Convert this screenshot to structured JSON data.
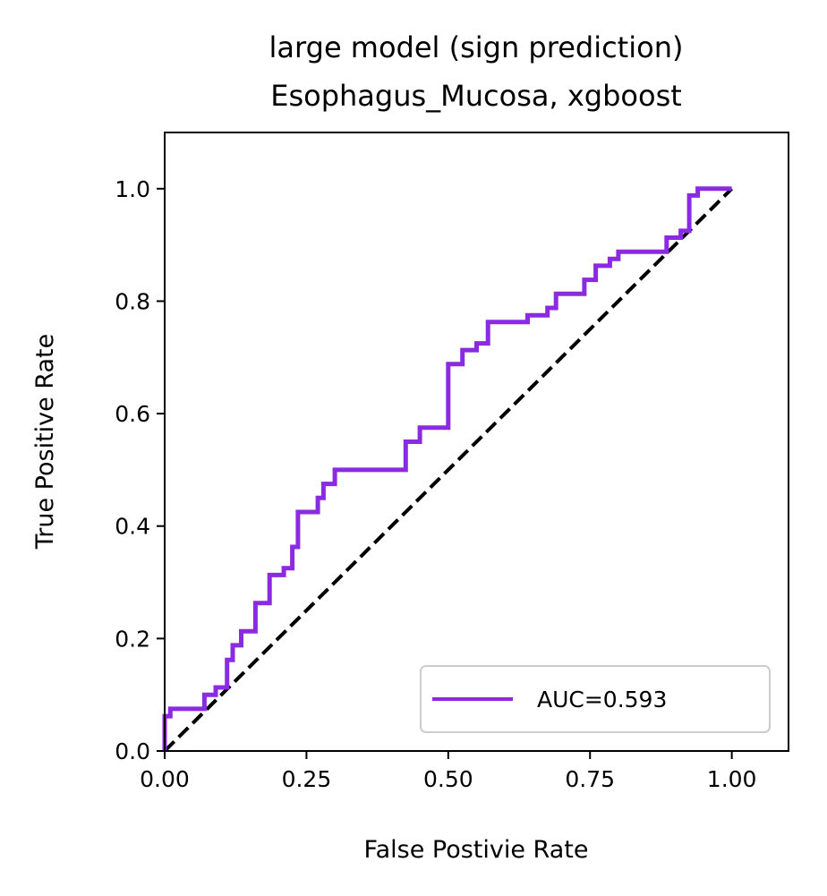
{
  "chart_data": {
    "type": "line",
    "title": "large model (sign prediction)",
    "subtitle": "Esophagus_Mucosa, xgboost",
    "xlabel": "False Postivie Rate",
    "ylabel": "True Positive Rate",
    "xlim": [
      0.0,
      1.1
    ],
    "ylim": [
      0.0,
      1.1
    ],
    "xticks": [
      0.0,
      0.25,
      0.5,
      0.75,
      1.0
    ],
    "xtick_labels": [
      "0.00",
      "0.25",
      "0.50",
      "0.75",
      "1.00"
    ],
    "yticks": [
      0.0,
      0.2,
      0.4,
      0.6,
      0.8,
      1.0
    ],
    "ytick_labels": [
      "0.0",
      "0.2",
      "0.4",
      "0.6",
      "0.8",
      "1.0"
    ],
    "grid": false,
    "legend_position": "lower-right",
    "colors": {
      "roc": "#8a2be2",
      "diagonal": "#000000"
    },
    "series": [
      {
        "name": "AUC=0.593",
        "style": "solid",
        "color": "#8a2be2",
        "x": [
          0.0,
          0.0,
          0.01,
          0.01,
          0.07,
          0.07,
          0.09,
          0.09,
          0.11,
          0.11,
          0.12,
          0.12,
          0.135,
          0.135,
          0.16,
          0.16,
          0.185,
          0.185,
          0.21,
          0.21,
          0.225,
          0.225,
          0.235,
          0.235,
          0.27,
          0.27,
          0.28,
          0.28,
          0.3,
          0.3,
          0.425,
          0.425,
          0.45,
          0.45,
          0.5,
          0.5,
          0.525,
          0.525,
          0.55,
          0.55,
          0.57,
          0.57,
          0.64,
          0.64,
          0.675,
          0.675,
          0.69,
          0.69,
          0.74,
          0.74,
          0.76,
          0.76,
          0.785,
          0.785,
          0.8,
          0.8,
          0.885,
          0.885,
          0.91,
          0.91,
          0.925,
          0.925,
          0.94,
          0.94,
          1.0
        ],
        "y": [
          0.0,
          0.062,
          0.062,
          0.075,
          0.075,
          0.1,
          0.1,
          0.113,
          0.113,
          0.162,
          0.162,
          0.188,
          0.188,
          0.213,
          0.213,
          0.263,
          0.263,
          0.313,
          0.313,
          0.325,
          0.325,
          0.363,
          0.363,
          0.425,
          0.425,
          0.45,
          0.45,
          0.475,
          0.475,
          0.5,
          0.5,
          0.55,
          0.55,
          0.575,
          0.575,
          0.688,
          0.688,
          0.713,
          0.713,
          0.725,
          0.725,
          0.763,
          0.763,
          0.775,
          0.775,
          0.788,
          0.788,
          0.813,
          0.813,
          0.838,
          0.838,
          0.863,
          0.863,
          0.875,
          0.875,
          0.888,
          0.888,
          0.913,
          0.913,
          0.925,
          0.925,
          0.988,
          0.988,
          1.0,
          1.0
        ]
      },
      {
        "style": "dashed",
        "color": "#000000",
        "x": [
          0.0,
          1.0
        ],
        "y": [
          0.0,
          1.0
        ]
      }
    ],
    "legend": [
      {
        "label": "AUC=0.593",
        "color": "#8a2be2"
      }
    ]
  }
}
